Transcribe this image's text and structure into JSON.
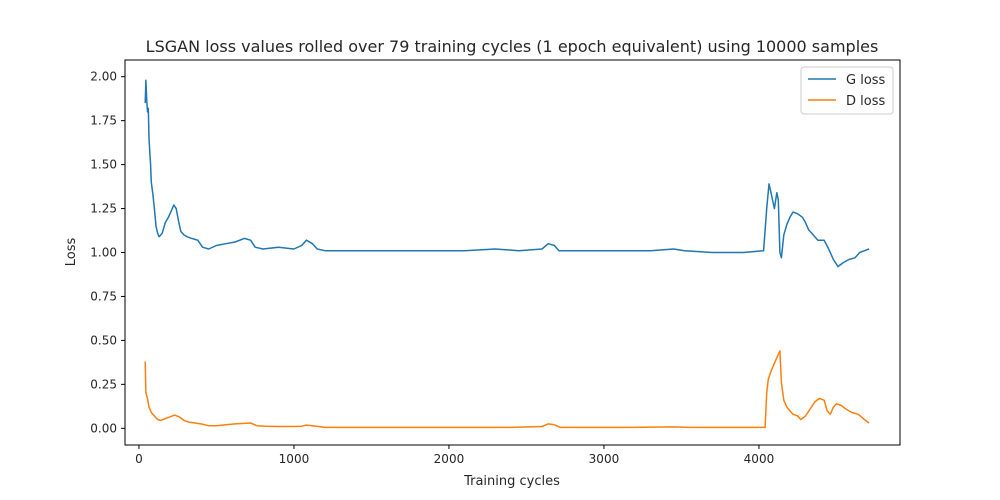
{
  "chart_data": {
    "type": "line",
    "title": "LSGAN loss values rolled over 79 training cycles (1 epoch equivalent) using 10000 samples",
    "xlabel": "Training cycles",
    "ylabel": "Loss",
    "xlim": [
      -90,
      4910
    ],
    "ylim": [
      -0.095,
      2.095
    ],
    "x_ticks": [
      0,
      1000,
      2000,
      3000,
      4000
    ],
    "x_tick_labels": [
      "0",
      "1000",
      "2000",
      "3000",
      "4000"
    ],
    "y_ticks": [
      0.0,
      0.25,
      0.5,
      0.75,
      1.0,
      1.25,
      1.5,
      1.75,
      2.0
    ],
    "y_tick_labels": [
      "0.00",
      "0.25",
      "0.50",
      "0.75",
      "1.00",
      "1.25",
      "1.50",
      "1.75",
      "2.00"
    ],
    "grid": false,
    "legend": {
      "position": "top-right"
    },
    "series": [
      {
        "name": "G loss",
        "color": "#1f77b4",
        "points": [
          [
            40,
            1.85
          ],
          [
            45,
            1.98
          ],
          [
            50,
            1.87
          ],
          [
            55,
            1.8
          ],
          [
            60,
            1.82
          ],
          [
            65,
            1.65
          ],
          [
            70,
            1.57
          ],
          [
            75,
            1.5
          ],
          [
            80,
            1.4
          ],
          [
            90,
            1.33
          ],
          [
            100,
            1.25
          ],
          [
            110,
            1.15
          ],
          [
            120,
            1.11
          ],
          [
            130,
            1.09
          ],
          [
            150,
            1.11
          ],
          [
            170,
            1.17
          ],
          [
            190,
            1.2
          ],
          [
            210,
            1.24
          ],
          [
            225,
            1.27
          ],
          [
            240,
            1.25
          ],
          [
            255,
            1.18
          ],
          [
            270,
            1.12
          ],
          [
            290,
            1.1
          ],
          [
            310,
            1.09
          ],
          [
            340,
            1.08
          ],
          [
            380,
            1.07
          ],
          [
            410,
            1.03
          ],
          [
            450,
            1.02
          ],
          [
            500,
            1.04
          ],
          [
            560,
            1.05
          ],
          [
            620,
            1.06
          ],
          [
            680,
            1.08
          ],
          [
            720,
            1.07
          ],
          [
            750,
            1.03
          ],
          [
            800,
            1.02
          ],
          [
            900,
            1.03
          ],
          [
            1000,
            1.02
          ],
          [
            1050,
            1.04
          ],
          [
            1080,
            1.07
          ],
          [
            1120,
            1.05
          ],
          [
            1150,
            1.02
          ],
          [
            1200,
            1.01
          ],
          [
            1300,
            1.01
          ],
          [
            1500,
            1.01
          ],
          [
            1700,
            1.01
          ],
          [
            1900,
            1.01
          ],
          [
            2100,
            1.01
          ],
          [
            2300,
            1.02
          ],
          [
            2450,
            1.01
          ],
          [
            2600,
            1.02
          ],
          [
            2640,
            1.05
          ],
          [
            2680,
            1.04
          ],
          [
            2710,
            1.01
          ],
          [
            2900,
            1.01
          ],
          [
            3100,
            1.01
          ],
          [
            3300,
            1.01
          ],
          [
            3450,
            1.02
          ],
          [
            3520,
            1.01
          ],
          [
            3700,
            1.0
          ],
          [
            3900,
            1.0
          ],
          [
            4030,
            1.01
          ],
          [
            4050,
            1.25
          ],
          [
            4065,
            1.39
          ],
          [
            4080,
            1.33
          ],
          [
            4100,
            1.25
          ],
          [
            4115,
            1.34
          ],
          [
            4125,
            1.3
          ],
          [
            4135,
            1.0
          ],
          [
            4145,
            0.97
          ],
          [
            4160,
            1.1
          ],
          [
            4180,
            1.16
          ],
          [
            4200,
            1.2
          ],
          [
            4220,
            1.23
          ],
          [
            4250,
            1.22
          ],
          [
            4280,
            1.2
          ],
          [
            4300,
            1.17
          ],
          [
            4320,
            1.13
          ],
          [
            4350,
            1.1
          ],
          [
            4380,
            1.07
          ],
          [
            4420,
            1.07
          ],
          [
            4450,
            1.02
          ],
          [
            4480,
            0.96
          ],
          [
            4510,
            0.92
          ],
          [
            4540,
            0.94
          ],
          [
            4580,
            0.96
          ],
          [
            4620,
            0.97
          ],
          [
            4650,
            1.0
          ],
          [
            4680,
            1.01
          ],
          [
            4710,
            1.02
          ]
        ]
      },
      {
        "name": "D loss",
        "color": "#ff7f0e",
        "points": [
          [
            40,
            0.38
          ],
          [
            45,
            0.2
          ],
          [
            55,
            0.17
          ],
          [
            65,
            0.12
          ],
          [
            80,
            0.09
          ],
          [
            100,
            0.07
          ],
          [
            120,
            0.05
          ],
          [
            140,
            0.045
          ],
          [
            170,
            0.055
          ],
          [
            200,
            0.065
          ],
          [
            230,
            0.075
          ],
          [
            260,
            0.065
          ],
          [
            290,
            0.045
          ],
          [
            320,
            0.035
          ],
          [
            360,
            0.03
          ],
          [
            400,
            0.025
          ],
          [
            450,
            0.015
          ],
          [
            500,
            0.015
          ],
          [
            560,
            0.02
          ],
          [
            620,
            0.025
          ],
          [
            680,
            0.028
          ],
          [
            720,
            0.03
          ],
          [
            760,
            0.015
          ],
          [
            820,
            0.012
          ],
          [
            900,
            0.01
          ],
          [
            1000,
            0.01
          ],
          [
            1050,
            0.012
          ],
          [
            1080,
            0.018
          ],
          [
            1120,
            0.015
          ],
          [
            1200,
            0.005
          ],
          [
            1400,
            0.005
          ],
          [
            1600,
            0.005
          ],
          [
            1800,
            0.005
          ],
          [
            2000,
            0.005
          ],
          [
            2200,
            0.005
          ],
          [
            2400,
            0.005
          ],
          [
            2600,
            0.01
          ],
          [
            2640,
            0.025
          ],
          [
            2680,
            0.02
          ],
          [
            2720,
            0.005
          ],
          [
            3000,
            0.005
          ],
          [
            3200,
            0.005
          ],
          [
            3450,
            0.008
          ],
          [
            3550,
            0.005
          ],
          [
            3700,
            0.005
          ],
          [
            3900,
            0.005
          ],
          [
            4040,
            0.005
          ],
          [
            4050,
            0.2
          ],
          [
            4060,
            0.28
          ],
          [
            4080,
            0.33
          ],
          [
            4100,
            0.37
          ],
          [
            4120,
            0.41
          ],
          [
            4135,
            0.44
          ],
          [
            4145,
            0.26
          ],
          [
            4160,
            0.16
          ],
          [
            4180,
            0.12
          ],
          [
            4200,
            0.1
          ],
          [
            4220,
            0.08
          ],
          [
            4250,
            0.07
          ],
          [
            4270,
            0.05
          ],
          [
            4300,
            0.07
          ],
          [
            4330,
            0.11
          ],
          [
            4360,
            0.15
          ],
          [
            4390,
            0.17
          ],
          [
            4420,
            0.16
          ],
          [
            4440,
            0.1
          ],
          [
            4460,
            0.08
          ],
          [
            4480,
            0.12
          ],
          [
            4500,
            0.14
          ],
          [
            4530,
            0.13
          ],
          [
            4560,
            0.11
          ],
          [
            4600,
            0.09
          ],
          [
            4640,
            0.08
          ],
          [
            4680,
            0.05
          ],
          [
            4710,
            0.03
          ]
        ]
      }
    ]
  }
}
